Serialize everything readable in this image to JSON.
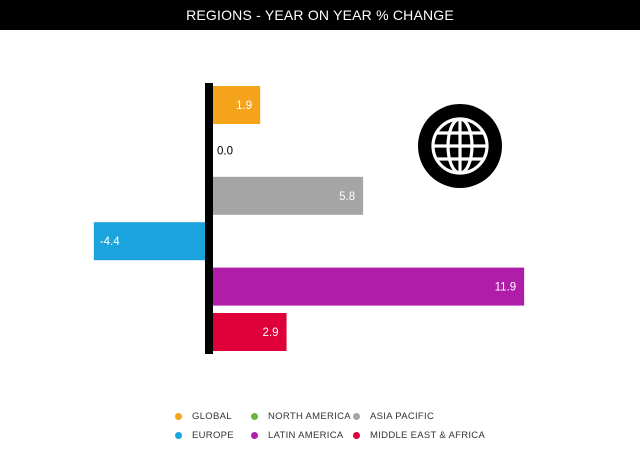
{
  "title": "REGIONS - YEAR ON YEAR % CHANGE",
  "globe_icon": "globe-icon",
  "chart_data": {
    "type": "bar",
    "orientation": "horizontal",
    "title": "REGIONS - YEAR ON YEAR % CHANGE",
    "categories": [
      "GLOBAL",
      "NORTH AMERICA",
      "ASIA PACIFIC",
      "EUROPE",
      "LATIN AMERICA",
      "MIDDLE EAST & AFRICA"
    ],
    "values": [
      1.9,
      0.0,
      5.8,
      -4.4,
      11.9,
      2.9
    ],
    "labels": [
      "1.9",
      "0.0",
      "5.8",
      "-4.4",
      "11.9",
      "2.9"
    ],
    "colors": [
      "#f5a31a",
      "#6ab43e",
      "#a5a5a5",
      "#1aa3dc",
      "#b01ea9",
      "#e00039"
    ],
    "xlim": [
      -4.4,
      11.9
    ],
    "grid": false,
    "legend_position": "bottom"
  },
  "legend": [
    {
      "label": "GLOBAL",
      "color": "#f5a31a"
    },
    {
      "label": "NORTH AMERICA",
      "color": "#6ab43e"
    },
    {
      "label": "ASIA PACIFIC",
      "color": "#a5a5a5"
    },
    {
      "label": "EUROPE",
      "color": "#1aa3dc"
    },
    {
      "label": "LATIN AMERICA",
      "color": "#b01ea9"
    },
    {
      "label": "MIDDLE EAST & AFRICA",
      "color": "#e00039"
    }
  ]
}
